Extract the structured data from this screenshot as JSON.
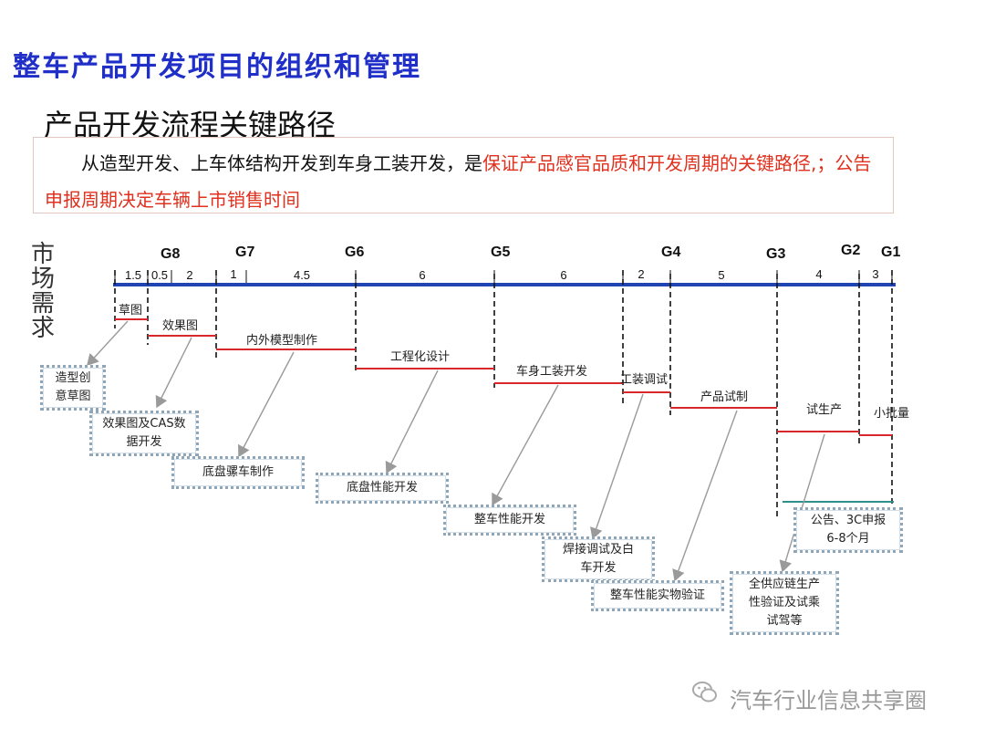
{
  "page_title": "整车产品开发项目的组织和管理",
  "section_title": "产品开发流程关键路径",
  "intro": {
    "normal": "　　从造型开发、上车体结构开发到车身工装开发，是",
    "highlight": "保证产品感官品质和开发周期的关键路径,；公告申报周期决定车辆上市销售时间"
  },
  "side_label": [
    "市",
    "场",
    "需",
    "求"
  ],
  "gates": [
    "G8",
    "G7",
    "G6",
    "G5",
    "G4",
    "G3",
    "G2",
    "G1"
  ],
  "durations": [
    "1.5",
    "0.5",
    "2",
    "1",
    "4.5",
    "6",
    "6",
    "2",
    "5",
    "4",
    "3"
  ],
  "activities": [
    "草图",
    "效果图",
    "内外模型制作",
    "工程化设计",
    "车身工装开发",
    "工装调试",
    "产品试制",
    "试生产",
    "小批量"
  ],
  "notes": [
    "造型创意草图",
    "效果图及CAS数据开发",
    "底盘骡车制作",
    "底盘性能开发",
    "整车性能开发",
    "焊接调试及白车开发",
    "整车性能实物验证",
    "全供应链生产性验证及试乘试驾等",
    "公告、3C申报6-8个月"
  ],
  "colors": {
    "title": "#1f2fc8",
    "timeline": "#1f45b5",
    "activity_bar": "#d9282c",
    "highlight": "#e0301e",
    "announce_bar": "#2f8f8a",
    "note_border": "#8fa6b8"
  },
  "watermark": "汽车行业信息共享圈"
}
